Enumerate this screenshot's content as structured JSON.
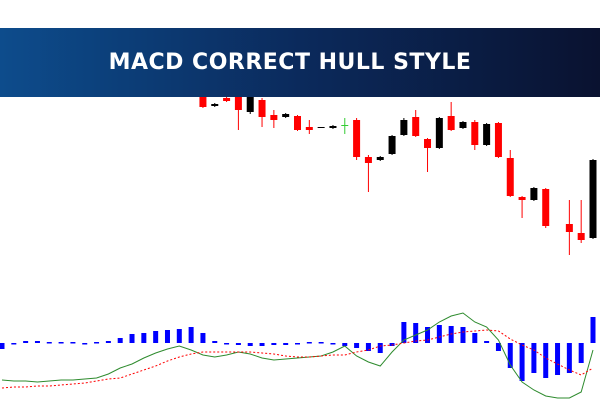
{
  "header": {
    "title": "MACD CORRECT HULL STYLE"
  },
  "chart_data": [
    {
      "type": "candlestick",
      "categories": [
        null,
        null,
        null,
        null,
        null,
        null,
        null,
        null,
        null,
        null,
        null,
        null,
        null,
        null,
        null,
        null,
        null,
        null,
        null,
        null,
        null,
        null,
        null,
        null,
        null,
        null,
        null,
        null,
        null,
        null,
        null,
        null,
        null,
        null,
        null,
        null,
        null,
        null,
        null,
        null,
        null,
        null,
        null,
        null,
        null,
        null,
        null,
        null,
        null,
        null,
        null
      ],
      "open": [
        null,
        null,
        null,
        null,
        null,
        null,
        null,
        null,
        null,
        null,
        null,
        null,
        null,
        null,
        null,
        null,
        null,
        203,
        194,
        202,
        203,
        188,
        200,
        185,
        183,
        184,
        173,
        172,
        172,
        175,
        180,
        143,
        140,
        146,
        165,
        183,
        161,
        152,
        184,
        172,
        178,
        155,
        177,
        142,
        103,
        100,
        111,
        null,
        76,
        67,
        62
      ],
      "high": [
        null,
        null,
        null,
        null,
        null,
        null,
        null,
        null,
        null,
        null,
        null,
        null,
        null,
        null,
        null,
        null,
        null,
        210,
        197,
        203,
        205,
        205,
        202,
        190,
        187,
        185,
        180,
        173,
        175,
        182,
        182,
        145,
        144,
        165,
        182,
        190,
        162,
        183,
        198,
        179,
        180,
        177,
        178,
        150,
        104,
        113,
        112,
        null,
        100,
        100,
        141
      ],
      "low": [
        null,
        null,
        null,
        null,
        null,
        null,
        null,
        null,
        null,
        null,
        null,
        null,
        null,
        null,
        null,
        null,
        null,
        192,
        193,
        198,
        170,
        186,
        173,
        172,
        182,
        169,
        166,
        172,
        171,
        166,
        140,
        108,
        139,
        145,
        164,
        163,
        128,
        151,
        169,
        171,
        150,
        154,
        142,
        103,
        82,
        99,
        72,
        null,
        45,
        57,
        61
      ],
      "close": [
        null,
        null,
        null,
        null,
        null,
        null,
        null,
        null,
        null,
        null,
        null,
        null,
        null,
        null,
        null,
        null,
        null,
        193,
        196,
        199,
        190,
        203,
        183,
        180,
        186,
        170,
        170,
        173,
        174,
        175,
        143,
        137,
        143,
        164,
        180,
        164,
        152,
        182,
        170,
        178,
        155,
        176,
        143,
        104,
        100,
        112,
        74,
        null,
        68,
        60,
        140
      ],
      "up_color": "#000000",
      "down_color": "#ff0000",
      "doji_color": "#33cc33",
      "ylim": [
        0,
        300
      ]
    },
    {
      "type": "macd",
      "histogram": {
        "color": "#0000ff",
        "values": [
          -6,
          0,
          2,
          2,
          1,
          1,
          1,
          -1,
          1,
          2,
          5,
          9,
          10,
          12,
          13,
          14,
          16,
          10,
          2,
          -1,
          -2,
          -3,
          -3,
          -2,
          -2,
          -1,
          1,
          1,
          -1,
          -3,
          -5,
          -8,
          -10,
          -3,
          21,
          20,
          16,
          18,
          17,
          16,
          10,
          2,
          -8,
          -25,
          -38,
          -30,
          -35,
          -32,
          -30,
          -20,
          26
        ]
      },
      "series": [
        {
          "color": "#2e8b2e",
          "style": "solid",
          "values": [
            -37,
            -38,
            -38,
            -39,
            -38,
            -37,
            -37,
            -36,
            -35,
            -31,
            -25,
            -21,
            -15,
            -10,
            -6,
            -3,
            -7,
            -12,
            -14,
            -12,
            -9,
            -11,
            -15,
            -17,
            -16,
            -15,
            -14,
            -13,
            -9,
            -3,
            -13,
            -19,
            -23,
            -9,
            3,
            8,
            13,
            21,
            27,
            30,
            21,
            16,
            3,
            -22,
            -39,
            -47,
            -53,
            -55,
            -55,
            -49,
            -7
          ]
        },
        {
          "color": "#ff0000",
          "style": "dotted",
          "values": [
            -45,
            -44,
            -44,
            -43,
            -43,
            -42,
            -41,
            -40,
            -38,
            -36,
            -35,
            -31,
            -27,
            -23,
            -18,
            -14,
            -11,
            -9,
            -9,
            -9,
            -9,
            -9,
            -10,
            -11,
            -13,
            -14,
            -14,
            -13,
            -12,
            -12,
            -9,
            -7,
            -3,
            -2,
            0,
            2,
            3,
            6,
            9,
            11,
            12,
            13,
            12,
            4,
            -2,
            -7,
            -15,
            -21,
            -27,
            -32,
            -25
          ]
        }
      ],
      "ylim": [
        -57,
        43
      ]
    }
  ]
}
